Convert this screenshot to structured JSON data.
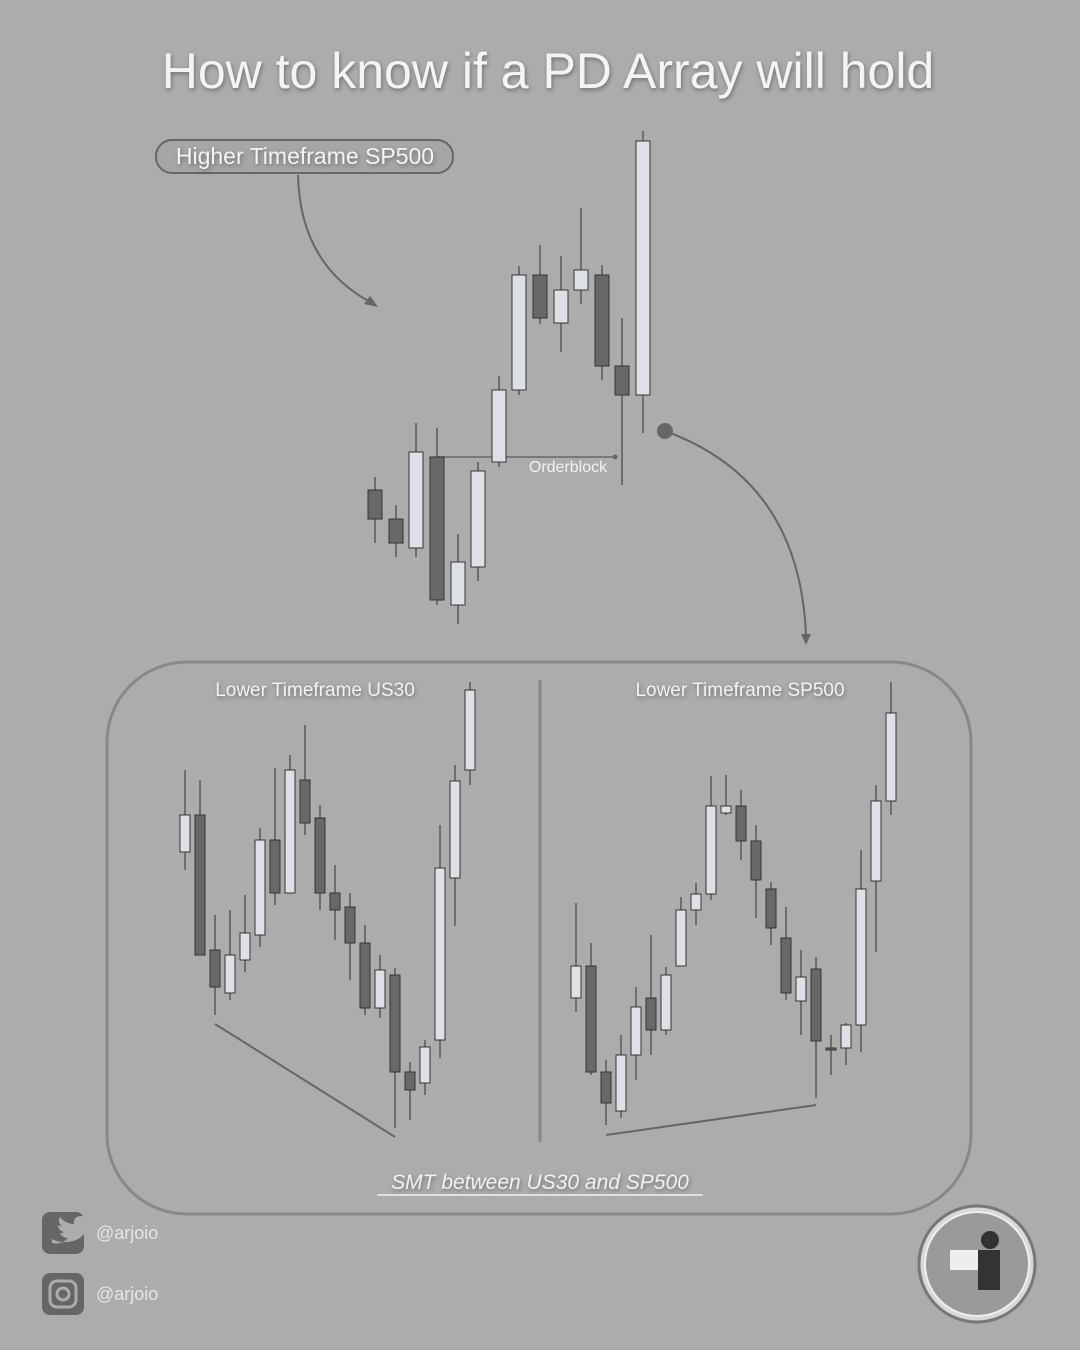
{
  "title": "How to know if a PD Array will hold",
  "htf_label": "Higher Timeframe SP500",
  "orderblock_label": "Orderblock",
  "ltf_left_label": "Lower Timeframe US30",
  "ltf_right_label": "Lower Timeframe SP500",
  "smt_label": "SMT between US30 and SP500",
  "socials": {
    "twitter": "@arjoio",
    "instagram": "@arjoio"
  }
}
